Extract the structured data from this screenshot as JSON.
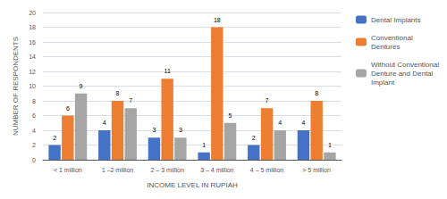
{
  "chart_data": {
    "type": "bar",
    "categories": [
      "< 1 million",
      "1 –2 million",
      "2 – 3 million",
      "3 – 4 million",
      "4 – 5 million",
      "> 5 million"
    ],
    "series": [
      {
        "name": "Dental Implants",
        "color": "#4472C4",
        "values": [
          2,
          4,
          3,
          1,
          2,
          4
        ]
      },
      {
        "name": "Conventional\nDentures",
        "color": "#ED7D31",
        "values": [
          6,
          8,
          11,
          18,
          7,
          8
        ]
      },
      {
        "name": "Without Conventional\nDenture and Dental\nImplant",
        "color": "#A5A5A5",
        "values": [
          9,
          7,
          3,
          5,
          4,
          1
        ]
      }
    ],
    "xlabel": "INCOME LEVEL IN RUPIAH",
    "ylabel": "NUMBER OF RESPONDENTS",
    "ylim": [
      0,
      20
    ],
    "yticks": [
      0,
      2,
      4,
      6,
      8,
      10,
      12,
      14,
      16,
      18,
      20
    ],
    "grid": true,
    "legend": "right",
    "data_labels": true
  }
}
